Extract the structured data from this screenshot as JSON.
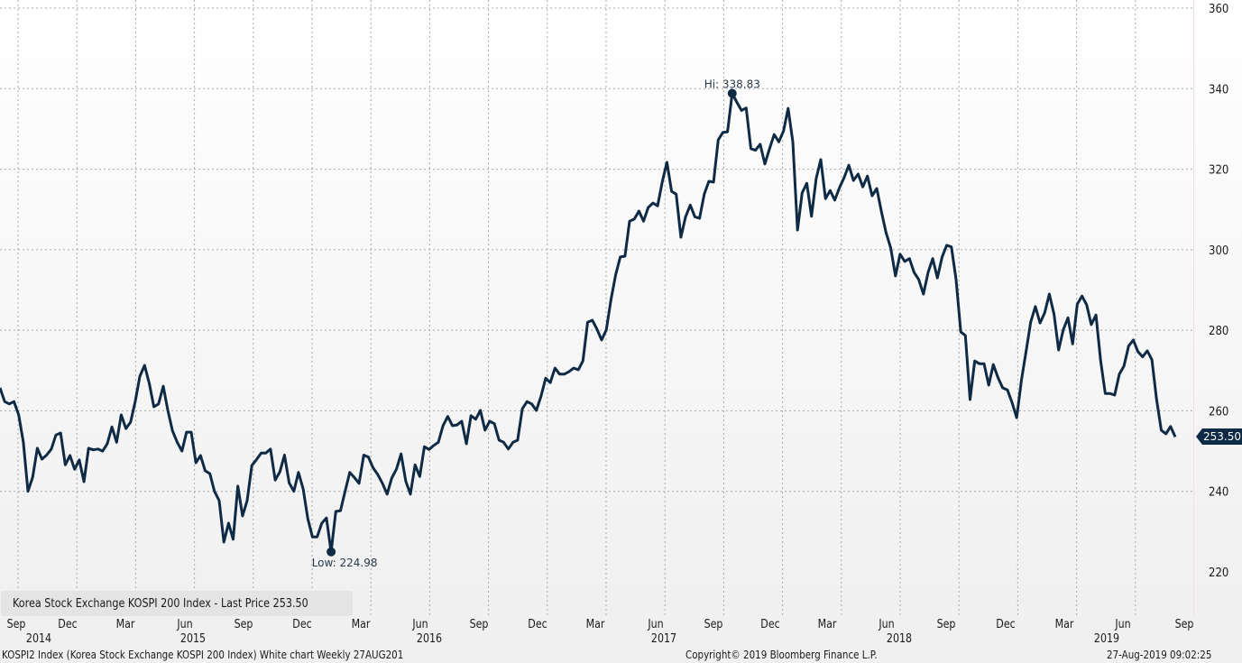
{
  "chart_data": {
    "type": "line",
    "title": "Korea Stock Exchange KOSPI 200 Index",
    "frequency": "Weekly",
    "ylim": [
      220,
      360
    ],
    "yticks": [
      220,
      240,
      260,
      280,
      300,
      320,
      340,
      360
    ],
    "xticks": [
      "Sep",
      "Dec",
      "Mar",
      "Jun",
      "Sep",
      "Dec",
      "Mar",
      "Jun",
      "Sep",
      "Dec",
      "Mar",
      "Jun",
      "Sep",
      "Dec",
      "Mar",
      "Jun",
      "Sep",
      "Dec",
      "Mar",
      "Jun",
      "Sep"
    ],
    "xyears": [
      "2014",
      "2015",
      "2016",
      "2017",
      "2018",
      "2019"
    ],
    "grid": true,
    "legend": "Korea Stock Exchange KOSPI 200 Index - Last Price 253.50",
    "legend_position": "bottom-left",
    "series": [
      {
        "name": "KOSPI 200 Last Price",
        "color": "#0f2a44",
        "values": [
          265.7,
          262.3,
          261.7,
          262.3,
          259,
          252.2,
          240,
          243.5,
          250.7,
          248,
          249,
          250.5,
          254,
          254.5,
          246.6,
          248.9,
          245.5,
          247.8,
          242.4,
          250.7,
          250.3,
          250.5,
          250,
          251.8,
          256,
          252.2,
          259,
          255.6,
          257.2,
          262.3,
          268.6,
          271.3,
          266.8,
          261,
          261.7,
          266.1,
          260.1,
          255,
          252.2,
          250,
          254.7,
          254.7,
          247.1,
          248.9,
          245.1,
          244.4,
          240,
          237.7,
          227.4,
          232.1,
          228.1,
          241.3,
          233.9,
          237.7,
          246.4,
          247.9,
          249.5,
          249.5,
          250.5,
          242.8,
          244.8,
          249,
          242.1,
          240,
          244.7,
          240.6,
          233.2,
          228.7,
          228.7,
          232.1,
          233.4,
          224.98,
          235,
          235.2,
          240,
          244.7,
          243.4,
          242,
          249,
          248.5,
          245.8,
          244.2,
          242,
          239.3,
          243.3,
          245.5,
          249.3,
          242.6,
          239.3,
          246.6,
          243.7,
          251.1,
          250.4,
          251.4,
          252.2,
          256.3,
          258.6,
          256.3,
          256.5,
          257.4,
          251.8,
          258.8,
          257.9,
          260.1,
          255.2,
          257.4,
          256.8,
          252.7,
          252.2,
          250.5,
          252.2,
          252.7,
          260.5,
          262.3,
          261.7,
          260.1,
          263.6,
          268.1,
          267,
          270.6,
          269.1,
          269.1,
          269.7,
          270.6,
          270.2,
          272.4,
          282,
          282.5,
          280.3,
          277.6,
          280.1,
          287.6,
          293.7,
          298.2,
          298.4,
          307.1,
          307.6,
          309.6,
          307.1,
          310.5,
          311.6,
          310.9,
          316.8,
          321.7,
          314.5,
          313.8,
          303.1,
          308.2,
          311.1,
          308.2,
          307.8,
          313.8,
          317,
          316.8,
          327.3,
          329.1,
          329.3,
          338.83,
          336.6,
          334.6,
          335.2,
          325.1,
          324.7,
          326.2,
          321.3,
          325.1,
          328.6,
          326.8,
          329.5,
          335.1,
          326.8,
          304.9,
          314.1,
          316.5,
          308.3,
          317.7,
          322.4,
          312.7,
          314.7,
          312.3,
          315.4,
          317.9,
          321,
          317.2,
          318.8,
          315.6,
          318.3,
          313.4,
          315.2,
          309.4,
          304.2,
          300.4,
          293.5,
          298.9,
          297.1,
          297.8,
          294.4,
          292.6,
          289,
          294.4,
          297.8,
          293,
          298.2,
          301.1,
          300.7,
          292.6,
          279.6,
          278.7,
          262.8,
          272.4,
          271.7,
          271.7,
          266.4,
          271.5,
          268.2,
          265.7,
          265.2,
          262.1,
          258.3,
          267.5,
          274.6,
          282,
          285.9,
          281.8,
          284.3,
          289,
          284,
          275.1,
          280.2,
          283.1,
          276.6,
          286.5,
          288.5,
          286.3,
          281.4,
          283.8,
          272.4,
          264.3,
          264.3,
          263.9,
          269.1,
          271.1,
          276.1,
          277.6,
          274.7,
          273.4,
          274.9,
          272.7,
          262.8,
          255.2,
          254.3,
          256.1,
          253.5
        ]
      }
    ],
    "annotations": {
      "high_label": "Hi: 338.83",
      "low_label": "Low: 224.98",
      "last_price": "253.50"
    }
  },
  "footer": {
    "left": "KOSPI2 Index (Korea Stock Exchange KOSPI 200 Index) White chart  Weekly 27AUG201",
    "center": "Copyright© 2019 Bloomberg Finance L.P.",
    "right": "27-Aug-2019 09:02:25"
  }
}
